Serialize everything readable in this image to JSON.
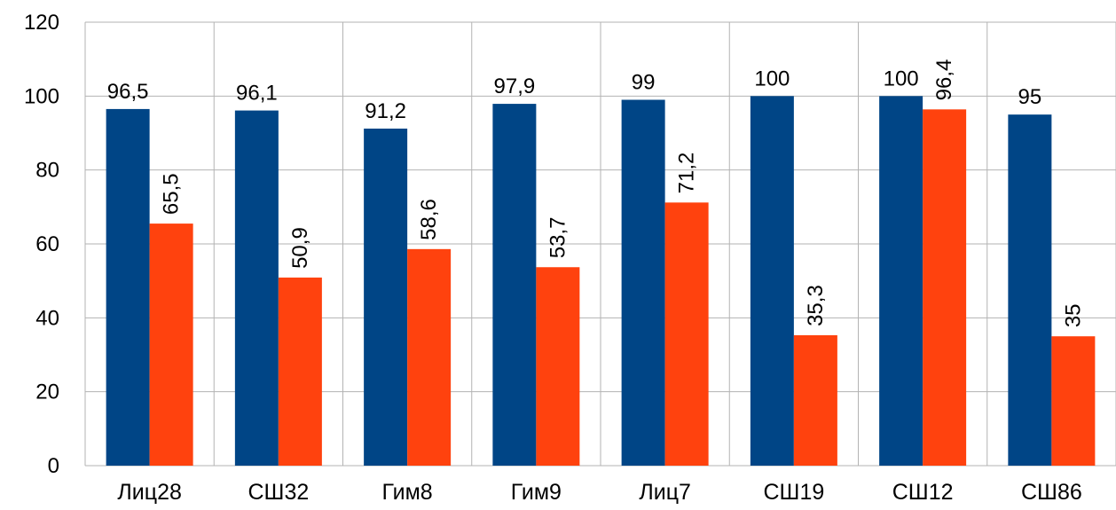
{
  "chart_data": {
    "type": "bar",
    "categories": [
      "Лиц28",
      "СШ32",
      "Гим8",
      "Гим9",
      "Лиц7",
      "СШ19",
      "СШ12",
      "СШ86"
    ],
    "series": [
      {
        "values": [
          96.5,
          96.1,
          91.2,
          97.9,
          99,
          100,
          100,
          95
        ],
        "labels": [
          "96,5",
          "96,1",
          "91,2",
          "97,9",
          "99",
          "100",
          "100",
          "95"
        ],
        "color": "#004586",
        "label_rotation": "horizontal"
      },
      {
        "values": [
          65.5,
          50.9,
          58.6,
          53.7,
          71.2,
          35.3,
          96.4,
          35
        ],
        "labels": [
          "65,5",
          "50,9",
          "58,6",
          "53,7",
          "71,2",
          "35,3",
          "96,4",
          "35"
        ],
        "color": "#ff420e",
        "label_rotation": "vertical"
      }
    ],
    "ylim": [
      0,
      120
    ],
    "yticks": [
      "0",
      "20",
      "40",
      "60",
      "80",
      "100",
      "120"
    ],
    "ytick_values": [
      0,
      20,
      40,
      60,
      80,
      100,
      120
    ],
    "grid": true,
    "legend": "none"
  }
}
